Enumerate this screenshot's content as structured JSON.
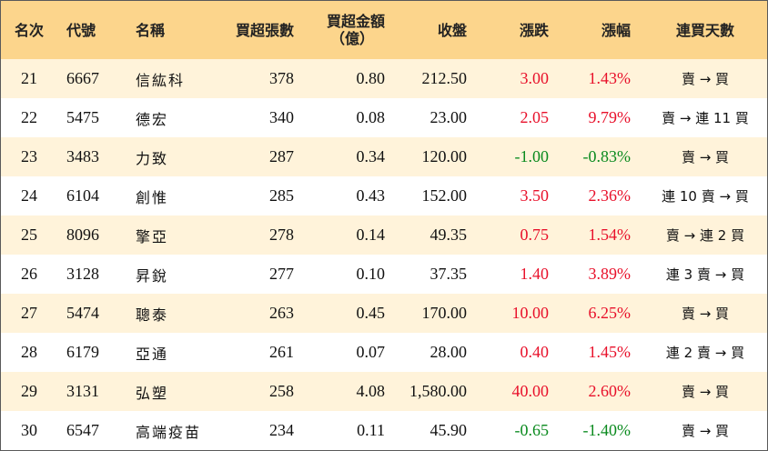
{
  "headers": {
    "rank": "名次",
    "code": "代號",
    "name": "名稱",
    "net_lots": "買超張數",
    "net_amount_line1": "買超金額",
    "net_amount_line2": "（億）",
    "close": "收盤",
    "change": "漲跌",
    "change_pct": "漲幅",
    "streak": "連買天數"
  },
  "rows": [
    {
      "rank": "21",
      "code": "6667",
      "name": "信紘科",
      "net_lots": "378",
      "net_amount": "0.80",
      "close": "212.50",
      "change": "3.00",
      "change_pct": "1.43%",
      "streak": "賣 → 買",
      "dir": "up"
    },
    {
      "rank": "22",
      "code": "5475",
      "name": "德宏",
      "net_lots": "340",
      "net_amount": "0.08",
      "close": "23.00",
      "change": "2.05",
      "change_pct": "9.79%",
      "streak": "賣 → 連 11 買",
      "dir": "up"
    },
    {
      "rank": "23",
      "code": "3483",
      "name": "力致",
      "net_lots": "287",
      "net_amount": "0.34",
      "close": "120.00",
      "change": "-1.00",
      "change_pct": "-0.83%",
      "streak": "賣 → 買",
      "dir": "down"
    },
    {
      "rank": "24",
      "code": "6104",
      "name": "創惟",
      "net_lots": "285",
      "net_amount": "0.43",
      "close": "152.00",
      "change": "3.50",
      "change_pct": "2.36%",
      "streak": "連 10 賣 → 買",
      "dir": "up"
    },
    {
      "rank": "25",
      "code": "8096",
      "name": "擎亞",
      "net_lots": "278",
      "net_amount": "0.14",
      "close": "49.35",
      "change": "0.75",
      "change_pct": "1.54%",
      "streak": "賣 → 連 2 買",
      "dir": "up"
    },
    {
      "rank": "26",
      "code": "3128",
      "name": "昇銳",
      "net_lots": "277",
      "net_amount": "0.10",
      "close": "37.35",
      "change": "1.40",
      "change_pct": "3.89%",
      "streak": "連 3 賣 → 買",
      "dir": "up"
    },
    {
      "rank": "27",
      "code": "5474",
      "name": "聰泰",
      "net_lots": "263",
      "net_amount": "0.45",
      "close": "170.00",
      "change": "10.00",
      "change_pct": "6.25%",
      "streak": "賣 → 買",
      "dir": "up"
    },
    {
      "rank": "28",
      "code": "6179",
      "name": "亞通",
      "net_lots": "261",
      "net_amount": "0.07",
      "close": "28.00",
      "change": "0.40",
      "change_pct": "1.45%",
      "streak": "連 2 賣 → 買",
      "dir": "up"
    },
    {
      "rank": "29",
      "code": "3131",
      "name": "弘塑",
      "net_lots": "258",
      "net_amount": "4.08",
      "close": "1,580.00",
      "change": "40.00",
      "change_pct": "2.60%",
      "streak": "賣 → 買",
      "dir": "up"
    },
    {
      "rank": "30",
      "code": "6547",
      "name": "高端疫苗",
      "net_lots": "234",
      "net_amount": "0.11",
      "close": "45.90",
      "change": "-0.65",
      "change_pct": "-1.40%",
      "streak": "賣 → 買",
      "dir": "down"
    }
  ],
  "colors": {
    "header_bg": "#fcd58c",
    "odd_row_bg": "#fff3da",
    "even_row_bg": "#ffffff",
    "up": "#e8102a",
    "down": "#0a8a1e"
  }
}
